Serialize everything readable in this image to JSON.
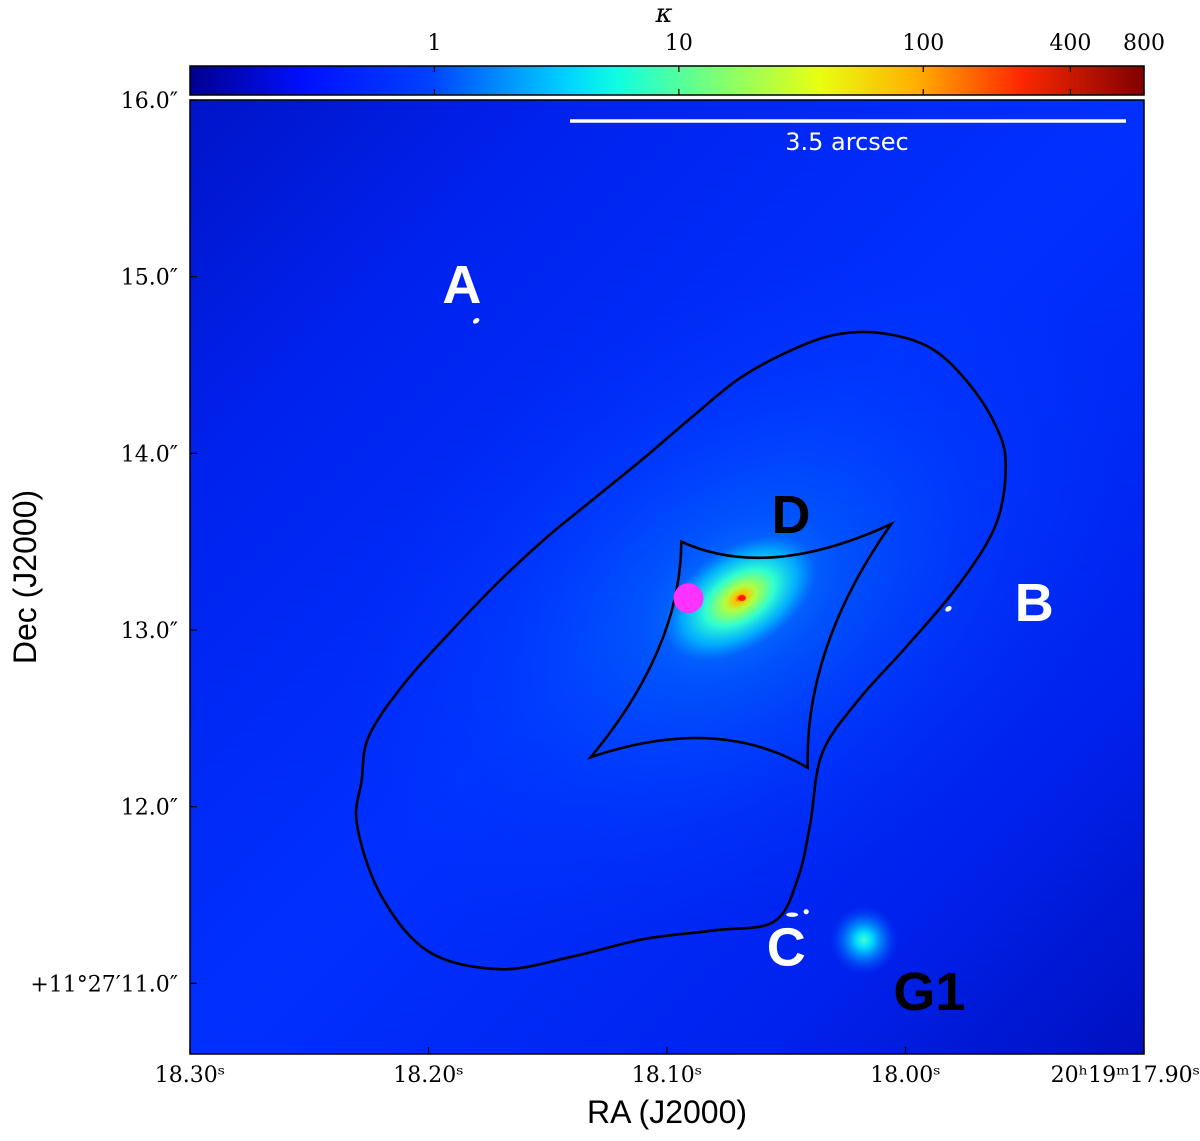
{
  "chart_data": {
    "type": "heatmap",
    "colorbar": {
      "title": "κ",
      "scale": "log",
      "tick_labels": [
        "1",
        "10",
        "100",
        "400",
        "800"
      ],
      "tick_values": [
        1,
        10,
        100,
        400,
        800
      ],
      "range": [
        0.1,
        800
      ],
      "colormap": "jet"
    },
    "x_axis": {
      "label": "RA (J2000)",
      "tick_labels": [
        "18.30ˢ",
        "18.20ˢ",
        "18.10ˢ",
        "18.00ˢ",
        "20ʰ19ᵐ17.90ˢ"
      ],
      "tick_values_s": [
        18.3,
        18.2,
        18.1,
        18.0,
        17.9
      ],
      "range_s": [
        18.3,
        17.9
      ]
    },
    "y_axis": {
      "label": "Dec (J2000)",
      "tick_labels": [
        "16.0″",
        "15.0″",
        "14.0″",
        "13.0″",
        "12.0″",
        "+11°27′11.0″"
      ],
      "tick_values_arcsec": [
        16.0,
        15.0,
        14.0,
        13.0,
        12.0,
        11.0
      ],
      "range_arcsec": [
        10.6,
        16.0
      ]
    },
    "scale_bar": {
      "label": "3.5 arcsec",
      "length_arcsec": 3.5
    },
    "image_labels": [
      {
        "name": "A",
        "color": "#ffffff",
        "ra_s": 18.186,
        "dec_arcsec": 14.85
      },
      {
        "name": "B",
        "color": "#ffffff",
        "ra_s": 17.946,
        "dec_arcsec": 13.05
      },
      {
        "name": "C",
        "color": "#ffffff",
        "ra_s": 18.05,
        "dec_arcsec": 11.1
      },
      {
        "name": "D",
        "color": "#000000",
        "ra_s": 18.048,
        "dec_arcsec": 13.55
      },
      {
        "name": "G1",
        "color": "#000000",
        "ra_s": 17.99,
        "dec_arcsec": 10.85
      }
    ],
    "lensed_images": [
      {
        "name": "A",
        "ra_s": 18.18,
        "dec_arcsec": 14.75
      },
      {
        "name": "B",
        "ra_s": 17.982,
        "dec_arcsec": 13.12
      },
      {
        "name": "C",
        "ra_s": 18.045,
        "dec_arcsec": 11.4
      }
    ],
    "source_position": {
      "ra_s": 18.091,
      "dec_arcsec": 13.18,
      "color": "#ff33ff"
    },
    "main_lens_center": {
      "ra_s": 18.064,
      "dec_arcsec": 12.92,
      "kappa_peak": 800
    },
    "satellite_G1": {
      "ra_s": 18.015,
      "dec_arcsec": 10.8,
      "kappa_peak": 8
    },
    "critical_curve": [
      [
        18.225,
        12.4
      ],
      [
        18.21,
        12.7
      ],
      [
        18.19,
        13.0
      ],
      [
        18.17,
        13.28
      ],
      [
        18.15,
        13.53
      ],
      [
        18.13,
        13.75
      ],
      [
        18.11,
        13.97
      ],
      [
        18.09,
        14.2
      ],
      [
        18.07,
        14.42
      ],
      [
        18.05,
        14.57
      ],
      [
        18.03,
        14.67
      ],
      [
        18.01,
        14.68
      ],
      [
        17.99,
        14.6
      ],
      [
        17.975,
        14.42
      ],
      [
        17.963,
        14.18
      ],
      [
        17.958,
        13.95
      ],
      [
        17.962,
        13.6
      ],
      [
        17.978,
        13.25
      ],
      [
        18.0,
        12.9
      ],
      [
        18.02,
        12.6
      ],
      [
        18.035,
        12.3
      ],
      [
        18.04,
        11.9
      ],
      [
        18.045,
        11.6
      ],
      [
        18.055,
        11.35
      ],
      [
        18.08,
        11.3
      ],
      [
        18.11,
        11.25
      ],
      [
        18.14,
        11.15
      ],
      [
        18.17,
        11.08
      ],
      [
        18.2,
        11.18
      ],
      [
        18.22,
        11.5
      ],
      [
        18.23,
        11.9
      ],
      [
        18.228,
        12.15
      ],
      [
        18.225,
        12.4
      ]
    ],
    "caustic_cusps": [
      [
        18.094,
        13.5
      ],
      [
        18.006,
        13.6
      ],
      [
        18.041,
        12.22
      ],
      [
        18.132,
        12.28
      ]
    ]
  }
}
